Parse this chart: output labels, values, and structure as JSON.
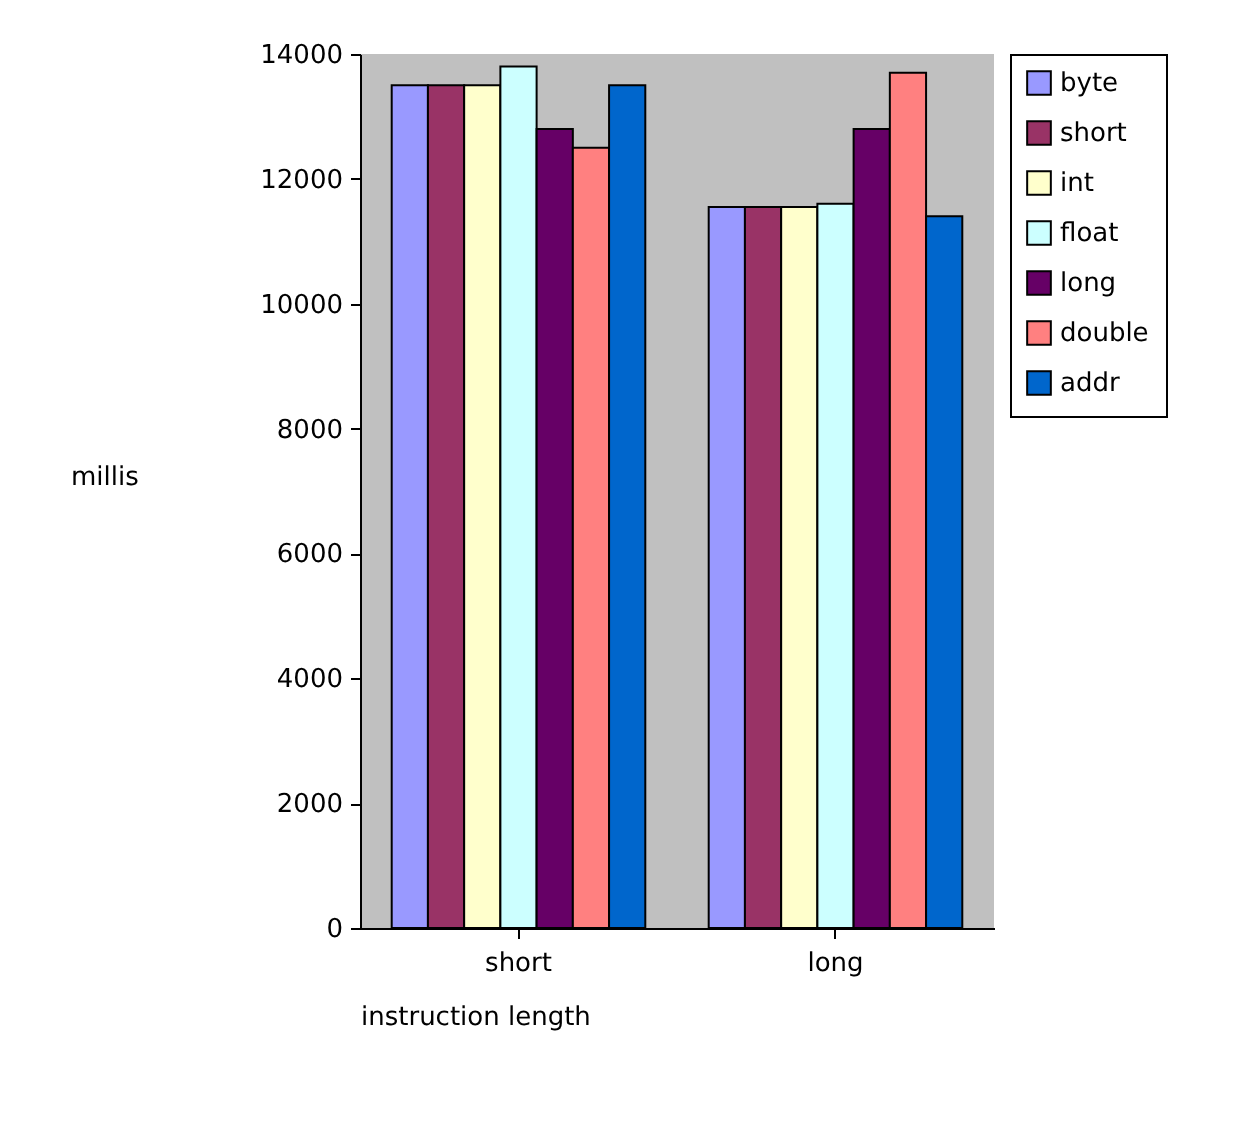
{
  "chart_data": {
    "type": "bar",
    "xlabel": "instruction length",
    "ylabel": "millis",
    "categories": [
      "short",
      "long"
    ],
    "series": [
      {
        "name": "byte",
        "color": "#9999ff",
        "values": [
          13500,
          11550
        ]
      },
      {
        "name": "short",
        "color": "#993366",
        "values": [
          13500,
          11550
        ]
      },
      {
        "name": "int",
        "color": "#ffffcc",
        "values": [
          13500,
          11550
        ]
      },
      {
        "name": "float",
        "color": "#ccffff",
        "values": [
          13800,
          11600
        ]
      },
      {
        "name": "long",
        "color": "#660066",
        "values": [
          12800,
          12800
        ]
      },
      {
        "name": "double",
        "color": "#ff8080",
        "values": [
          12500,
          13700
        ]
      },
      {
        "name": "addr",
        "color": "#0066cc",
        "values": [
          13500,
          11400
        ]
      }
    ],
    "ylim": [
      0,
      14000
    ],
    "yticks": [
      0,
      2000,
      4000,
      6000,
      8000,
      10000,
      12000,
      14000
    ],
    "grid": false,
    "legend": "right"
  }
}
